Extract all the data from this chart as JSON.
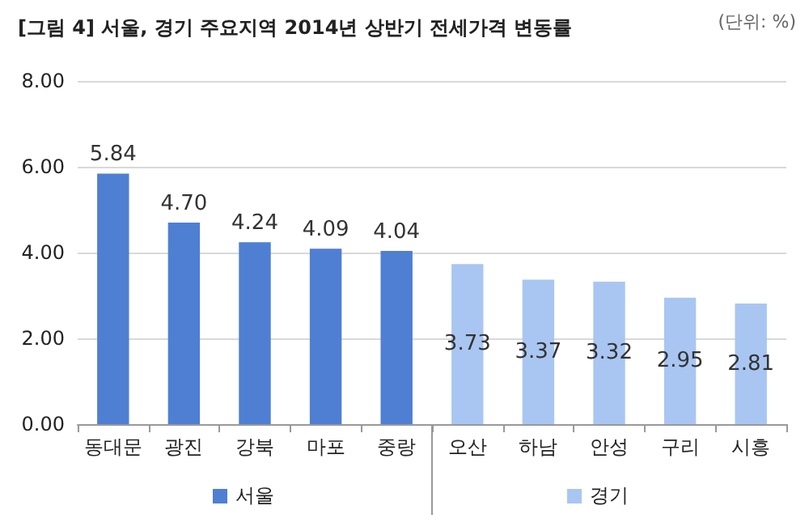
{
  "chart_data": {
    "type": "bar",
    "title": "[그림 4] 서울, 경기 주요지역 2014년 상반기 전세가격 변동률",
    "annotations": [
      "(단위: %)"
    ],
    "categories": [
      "동대문",
      "광진",
      "강북",
      "마포",
      "중랑",
      "오산",
      "하남",
      "안성",
      "구리",
      "시흥"
    ],
    "stacked": true,
    "series": [
      {
        "name": "서울",
        "color": "#4f7fd3",
        "values": [
          5.84,
          4.7,
          4.24,
          4.09,
          4.04,
          null,
          null,
          null,
          null,
          null
        ],
        "value_labels": [
          "5.84",
          "4.70",
          "4.24",
          "4.09",
          "4.04",
          null,
          null,
          null,
          null,
          null
        ]
      },
      {
        "name": "경기",
        "color": "#a9c6f2",
        "values": [
          null,
          null,
          null,
          null,
          null,
          3.73,
          3.37,
          3.32,
          2.95,
          2.81
        ],
        "value_labels": [
          null,
          null,
          null,
          null,
          null,
          "3.73",
          "3.37",
          "3.32",
          "2.95",
          "2.81"
        ]
      }
    ],
    "ylim": [
      0,
      8
    ],
    "yticks": [
      {
        "value": 0,
        "label": "0.00"
      },
      {
        "value": 2,
        "label": "2.00"
      },
      {
        "value": 4,
        "label": "4.00"
      },
      {
        "value": 6,
        "label": "6.00"
      },
      {
        "value": 8,
        "label": "8.00"
      }
    ],
    "grid": "y",
    "legend": "bottom"
  }
}
